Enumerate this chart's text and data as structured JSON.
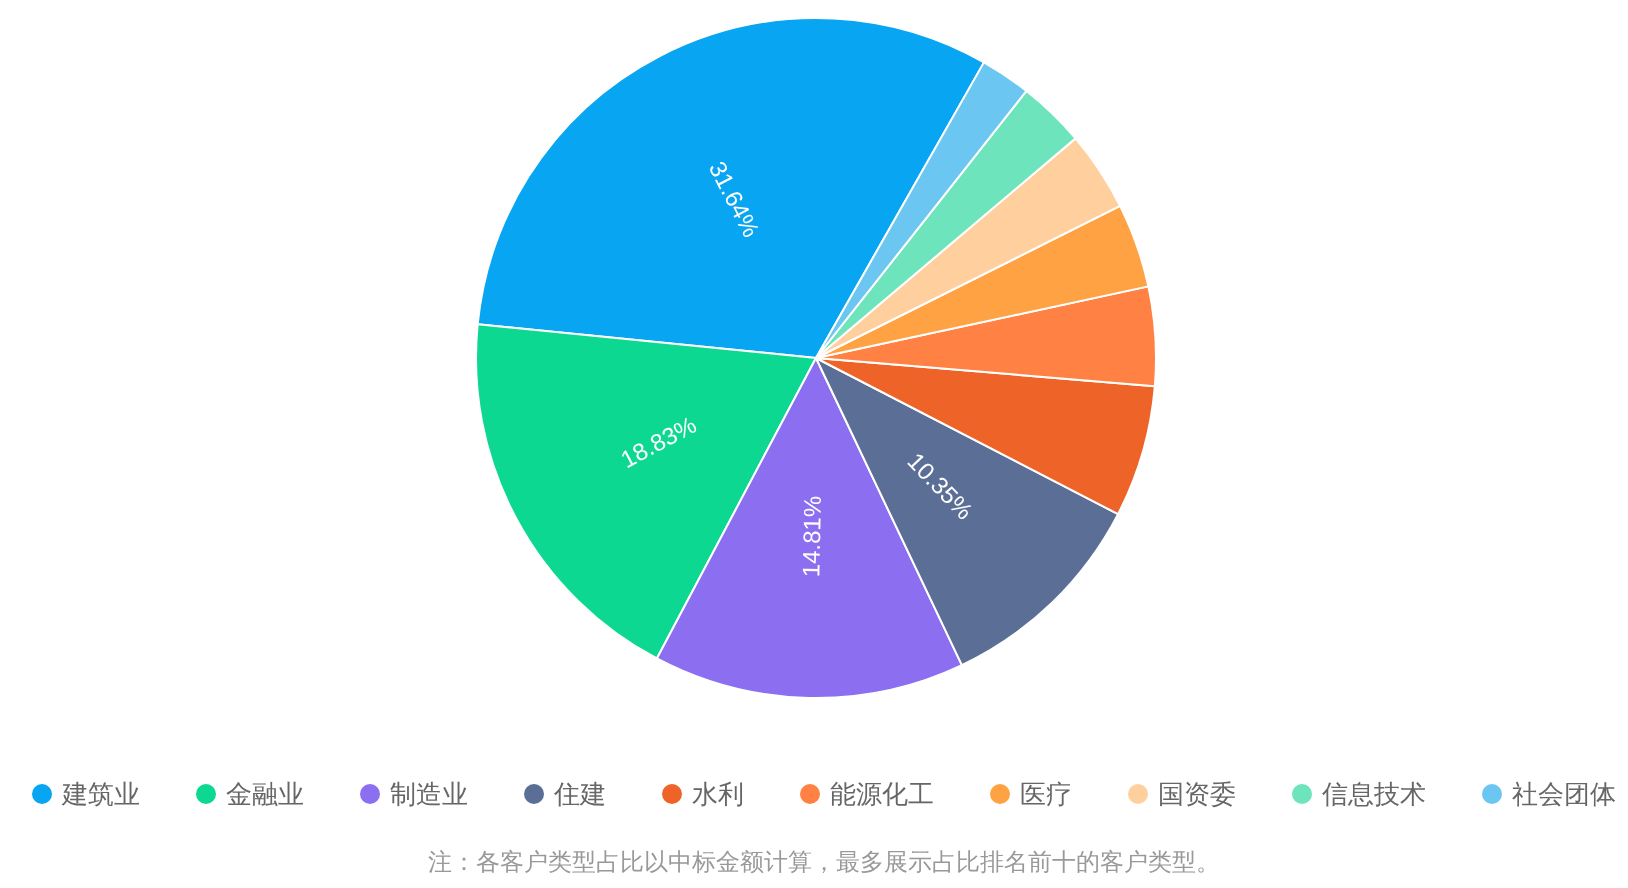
{
  "chart_data": {
    "type": "pie",
    "categories": [
      "建筑业",
      "金融业",
      "制造业",
      "住建",
      "水利",
      "能源化工",
      "医疗",
      "国资委",
      "信息技术",
      "社会团体"
    ],
    "values": [
      31.64,
      18.83,
      14.81,
      10.35,
      6.27,
      4.7,
      4.0,
      3.8,
      3.2,
      2.4
    ],
    "colors": [
      "#08a5f2",
      "#0dd891",
      "#8c6ff0",
      "#5b6e96",
      "#ee6428",
      "#ff8244",
      "#ffa244",
      "#ffd09e",
      "#6ee4bc",
      "#6cc6f2"
    ],
    "value_labels": [
      "31.64%",
      "18.83%",
      "14.81%",
      "10.35%",
      null,
      null,
      null,
      null,
      null,
      null
    ],
    "legend": "bottom",
    "annotations": [
      "注：各客户类型占比以中标金额计算，最多展示占比排名前十的客户类型。"
    ]
  }
}
